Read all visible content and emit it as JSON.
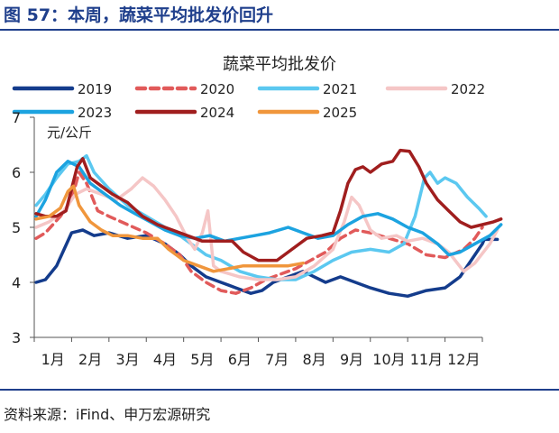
{
  "figure_title": "图 57：本周，蔬菜平均批发价回升",
  "source": "资料来源：iFind、申万宏源研究",
  "chart_data": {
    "type": "line",
    "title": "蔬菜平均批发价",
    "unit": "元/公斤",
    "ylim": [
      3,
      7
    ],
    "yticks": [
      "3",
      "4",
      "5",
      "6",
      "7"
    ],
    "xlim": [
      0,
      12
    ],
    "month_labels": [
      "1月",
      "2月",
      "3月",
      "4月",
      "5月",
      "6月",
      "7月",
      "8月",
      "9月",
      "10月",
      "11月",
      "12月"
    ],
    "grid": false,
    "legend_position": "top",
    "series": [
      {
        "name": "2019",
        "color": "#143c8c",
        "style": "solid",
        "points": [
          [
            0.05,
            4.0
          ],
          [
            0.3,
            4.05
          ],
          [
            0.6,
            4.3
          ],
          [
            0.8,
            4.6
          ],
          [
            1.0,
            4.9
          ],
          [
            1.3,
            4.95
          ],
          [
            1.6,
            4.85
          ],
          [
            2.0,
            4.9
          ],
          [
            2.5,
            4.8
          ],
          [
            3.0,
            4.85
          ],
          [
            3.5,
            4.7
          ],
          [
            3.9,
            4.5
          ],
          [
            4.2,
            4.3
          ],
          [
            4.6,
            4.1
          ],
          [
            5.0,
            4.0
          ],
          [
            5.4,
            3.9
          ],
          [
            5.8,
            3.8
          ],
          [
            6.1,
            3.85
          ],
          [
            6.4,
            4.0
          ],
          [
            6.8,
            4.1
          ],
          [
            7.2,
            4.2
          ],
          [
            7.5,
            4.1
          ],
          [
            7.8,
            4.0
          ],
          [
            8.2,
            4.1
          ],
          [
            8.6,
            4.0
          ],
          [
            9.0,
            3.9
          ],
          [
            9.5,
            3.8
          ],
          [
            10.0,
            3.75
          ],
          [
            10.5,
            3.85
          ],
          [
            11.0,
            3.9
          ],
          [
            11.4,
            4.1
          ],
          [
            11.7,
            4.4
          ],
          [
            12.0,
            4.7
          ],
          [
            12.05,
            4.78
          ],
          [
            12.4,
            4.78
          ]
        ]
      },
      {
        "name": "2020",
        "color": "#e15a5a",
        "style": "dashed",
        "points": [
          [
            0.05,
            4.8
          ],
          [
            0.3,
            4.9
          ],
          [
            0.7,
            5.2
          ],
          [
            1.0,
            5.5
          ],
          [
            1.2,
            6.0
          ],
          [
            1.4,
            5.8
          ],
          [
            1.7,
            5.3
          ],
          [
            2.0,
            5.2
          ],
          [
            2.5,
            5.05
          ],
          [
            3.0,
            4.9
          ],
          [
            3.5,
            4.7
          ],
          [
            3.9,
            4.5
          ],
          [
            4.2,
            4.2
          ],
          [
            4.6,
            4.0
          ],
          [
            5.0,
            3.85
          ],
          [
            5.4,
            3.8
          ],
          [
            5.8,
            3.9
          ],
          [
            6.2,
            4.05
          ],
          [
            6.6,
            4.15
          ],
          [
            7.0,
            4.25
          ],
          [
            7.4,
            4.4
          ],
          [
            7.8,
            4.55
          ],
          [
            8.2,
            4.8
          ],
          [
            8.6,
            4.95
          ],
          [
            9.0,
            4.9
          ],
          [
            9.5,
            4.8
          ],
          [
            10.0,
            4.7
          ],
          [
            10.5,
            4.5
          ],
          [
            11.0,
            4.45
          ],
          [
            11.5,
            4.6
          ],
          [
            11.8,
            4.8
          ],
          [
            12.0,
            5.0
          ]
        ]
      },
      {
        "name": "2021",
        "color": "#5bc8f0",
        "style": "solid",
        "points": [
          [
            0.05,
            5.4
          ],
          [
            0.3,
            5.6
          ],
          [
            0.6,
            5.9
          ],
          [
            0.9,
            6.15
          ],
          [
            1.2,
            6.2
          ],
          [
            1.4,
            6.3
          ],
          [
            1.6,
            6.0
          ],
          [
            2.0,
            5.7
          ],
          [
            2.5,
            5.4
          ],
          [
            3.0,
            5.2
          ],
          [
            3.5,
            5.0
          ],
          [
            3.9,
            4.85
          ],
          [
            4.2,
            4.7
          ],
          [
            4.6,
            4.5
          ],
          [
            5.0,
            4.4
          ],
          [
            5.5,
            4.2
          ],
          [
            6.0,
            4.1
          ],
          [
            6.5,
            4.05
          ],
          [
            7.0,
            4.05
          ],
          [
            7.5,
            4.2
          ],
          [
            8.0,
            4.4
          ],
          [
            8.5,
            4.55
          ],
          [
            9.0,
            4.6
          ],
          [
            9.5,
            4.55
          ],
          [
            9.9,
            4.7
          ],
          [
            10.2,
            5.2
          ],
          [
            10.45,
            5.9
          ],
          [
            10.6,
            6.0
          ],
          [
            10.8,
            5.8
          ],
          [
            11.0,
            5.9
          ],
          [
            11.3,
            5.8
          ],
          [
            11.6,
            5.55
          ],
          [
            11.9,
            5.35
          ],
          [
            12.1,
            5.2
          ]
        ]
      },
      {
        "name": "2022",
        "color": "#f5c6c6",
        "style": "solid",
        "points": [
          [
            0.05,
            5.0
          ],
          [
            0.4,
            5.1
          ],
          [
            0.8,
            5.3
          ],
          [
            1.1,
            5.6
          ],
          [
            1.4,
            5.7
          ],
          [
            1.8,
            5.6
          ],
          [
            2.2,
            5.5
          ],
          [
            2.6,
            5.7
          ],
          [
            2.9,
            5.9
          ],
          [
            3.2,
            5.75
          ],
          [
            3.5,
            5.5
          ],
          [
            3.8,
            5.2
          ],
          [
            4.1,
            4.8
          ],
          [
            4.3,
            4.6
          ],
          [
            4.5,
            4.9
          ],
          [
            4.65,
            5.3
          ],
          [
            4.8,
            4.3
          ],
          [
            5.0,
            4.2
          ],
          [
            5.5,
            4.1
          ],
          [
            6.0,
            4.05
          ],
          [
            6.5,
            4.05
          ],
          [
            7.0,
            4.1
          ],
          [
            7.5,
            4.3
          ],
          [
            8.0,
            4.6
          ],
          [
            8.3,
            5.1
          ],
          [
            8.5,
            5.55
          ],
          [
            8.7,
            5.4
          ],
          [
            9.0,
            4.95
          ],
          [
            9.3,
            4.8
          ],
          [
            9.7,
            4.85
          ],
          [
            10.0,
            4.75
          ],
          [
            10.4,
            4.8
          ],
          [
            10.8,
            4.7
          ],
          [
            11.1,
            4.55
          ],
          [
            11.5,
            4.2
          ],
          [
            11.8,
            4.35
          ],
          [
            12.2,
            4.7
          ],
          [
            12.4,
            4.95
          ]
        ]
      },
      {
        "name": "2023",
        "color": "#1ca3e0",
        "style": "solid",
        "points": [
          [
            0.05,
            5.2
          ],
          [
            0.3,
            5.5
          ],
          [
            0.6,
            6.0
          ],
          [
            0.9,
            6.2
          ],
          [
            1.2,
            6.1
          ],
          [
            1.5,
            5.8
          ],
          [
            1.9,
            5.6
          ],
          [
            2.3,
            5.4
          ],
          [
            2.7,
            5.25
          ],
          [
            3.1,
            5.1
          ],
          [
            3.5,
            4.95
          ],
          [
            3.9,
            4.85
          ],
          [
            4.3,
            4.8
          ],
          [
            4.7,
            4.85
          ],
          [
            5.1,
            4.75
          ],
          [
            5.5,
            4.8
          ],
          [
            5.9,
            4.85
          ],
          [
            6.3,
            4.9
          ],
          [
            6.8,
            5.0
          ],
          [
            7.2,
            4.9
          ],
          [
            7.6,
            4.8
          ],
          [
            8.0,
            4.85
          ],
          [
            8.4,
            5.05
          ],
          [
            8.8,
            5.2
          ],
          [
            9.2,
            5.25
          ],
          [
            9.6,
            5.15
          ],
          [
            10.0,
            5.0
          ],
          [
            10.4,
            4.9
          ],
          [
            10.8,
            4.7
          ],
          [
            11.1,
            4.5
          ],
          [
            11.4,
            4.55
          ],
          [
            11.8,
            4.7
          ],
          [
            12.2,
            4.85
          ],
          [
            12.5,
            5.05
          ]
        ]
      },
      {
        "name": "2024",
        "color": "#a01e1e",
        "style": "solid",
        "points": [
          [
            0.05,
            5.25
          ],
          [
            0.3,
            5.2
          ],
          [
            0.6,
            5.2
          ],
          [
            0.85,
            5.3
          ],
          [
            1.0,
            5.7
          ],
          [
            1.15,
            6.1
          ],
          [
            1.3,
            6.25
          ],
          [
            1.5,
            5.9
          ],
          [
            1.8,
            5.75
          ],
          [
            2.1,
            5.6
          ],
          [
            2.5,
            5.45
          ],
          [
            2.9,
            5.2
          ],
          [
            3.3,
            5.05
          ],
          [
            3.7,
            4.95
          ],
          [
            4.1,
            4.85
          ],
          [
            4.5,
            4.75
          ],
          [
            4.9,
            4.75
          ],
          [
            5.3,
            4.75
          ],
          [
            5.6,
            4.55
          ],
          [
            6.0,
            4.4
          ],
          [
            6.5,
            4.4
          ],
          [
            6.9,
            4.6
          ],
          [
            7.3,
            4.8
          ],
          [
            7.7,
            4.85
          ],
          [
            8.0,
            4.9
          ],
          [
            8.2,
            5.3
          ],
          [
            8.4,
            5.8
          ],
          [
            8.6,
            6.05
          ],
          [
            8.8,
            6.1
          ],
          [
            9.0,
            6.0
          ],
          [
            9.3,
            6.15
          ],
          [
            9.6,
            6.2
          ],
          [
            9.8,
            6.4
          ],
          [
            10.05,
            6.38
          ],
          [
            10.3,
            6.1
          ],
          [
            10.5,
            5.8
          ],
          [
            10.8,
            5.5
          ],
          [
            11.1,
            5.3
          ],
          [
            11.4,
            5.1
          ],
          [
            11.7,
            5.0
          ],
          [
            12.0,
            5.05
          ],
          [
            12.3,
            5.1
          ],
          [
            12.5,
            5.15
          ]
        ]
      },
      {
        "name": "2025",
        "color": "#f0963c",
        "style": "solid",
        "points": [
          [
            0.05,
            5.15
          ],
          [
            0.4,
            5.2
          ],
          [
            0.7,
            5.35
          ],
          [
            0.9,
            5.65
          ],
          [
            1.05,
            5.75
          ],
          [
            1.2,
            5.4
          ],
          [
            1.5,
            5.1
          ],
          [
            1.8,
            4.95
          ],
          [
            2.1,
            4.85
          ],
          [
            2.5,
            4.85
          ],
          [
            2.9,
            4.8
          ],
          [
            3.3,
            4.8
          ],
          [
            3.6,
            4.6
          ],
          [
            4.0,
            4.4
          ],
          [
            4.4,
            4.3
          ],
          [
            4.8,
            4.2
          ],
          [
            5.2,
            4.25
          ],
          [
            5.6,
            4.3
          ],
          [
            6.0,
            4.3
          ],
          [
            6.4,
            4.3
          ],
          [
            6.8,
            4.3
          ],
          [
            7.2,
            4.35
          ]
        ]
      }
    ]
  }
}
